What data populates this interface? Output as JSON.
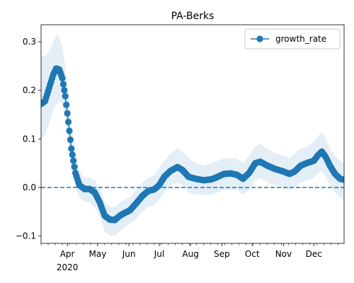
{
  "chart_data": {
    "type": "line",
    "title": "PA-Berks",
    "xlabel": "",
    "ylabel": "",
    "x_range": [
      "2020-03-06",
      "2020-12-31"
    ],
    "ylim": [
      -0.115,
      0.335
    ],
    "yticks": [
      -0.1,
      0.0,
      0.1,
      0.2,
      0.3
    ],
    "ytick_labels": [
      "−0.1",
      "0.0",
      "0.1",
      "0.2",
      "0.3"
    ],
    "xticks": [
      {
        "date": "2020-04-01",
        "label": "Apr"
      },
      {
        "date": "2020-05-01",
        "label": "May"
      },
      {
        "date": "2020-06-01",
        "label": "Jun"
      },
      {
        "date": "2020-07-01",
        "label": "Jul"
      },
      {
        "date": "2020-08-01",
        "label": "Aug"
      },
      {
        "date": "2020-09-01",
        "label": "Sep"
      },
      {
        "date": "2020-10-01",
        "label": "Oct"
      },
      {
        "date": "2020-11-01",
        "label": "Nov"
      },
      {
        "date": "2020-12-01",
        "label": "Dec"
      }
    ],
    "year_label": "2020",
    "reference_line": {
      "y": 0.0,
      "style": "dashed",
      "color": "#1f77b4"
    },
    "legend": {
      "position": "top-right"
    },
    "grid": false,
    "series": [
      {
        "name": "growth_rate",
        "color": "#1f77b4",
        "marker": "circle",
        "band_color": "#1f77b4",
        "points": [
          {
            "x": "2020-03-06",
            "y": 0.172,
            "lo": 0.1,
            "hi": 0.27
          },
          {
            "x": "2020-03-10",
            "y": 0.178,
            "lo": 0.11,
            "hi": 0.27
          },
          {
            "x": "2020-03-14",
            "y": 0.205,
            "lo": 0.13,
            "hi": 0.28
          },
          {
            "x": "2020-03-18",
            "y": 0.232,
            "lo": 0.16,
            "hi": 0.3
          },
          {
            "x": "2020-03-21",
            "y": 0.245,
            "lo": 0.17,
            "hi": 0.315
          },
          {
            "x": "2020-03-24",
            "y": 0.243,
            "lo": 0.18,
            "hi": 0.31
          },
          {
            "x": "2020-03-27",
            "y": 0.225,
            "lo": 0.17,
            "hi": 0.29
          },
          {
            "x": "2020-03-30",
            "y": 0.188,
            "lo": 0.14,
            "hi": 0.25
          },
          {
            "x": "2020-04-02",
            "y": 0.135,
            "lo": 0.09,
            "hi": 0.19
          },
          {
            "x": "2020-04-05",
            "y": 0.08,
            "lo": 0.04,
            "hi": 0.13
          },
          {
            "x": "2020-04-09",
            "y": 0.03,
            "lo": 0.0,
            "hi": 0.07
          },
          {
            "x": "2020-04-13",
            "y": 0.005,
            "lo": -0.02,
            "hi": 0.035
          },
          {
            "x": "2020-04-18",
            "y": -0.003,
            "lo": -0.03,
            "hi": 0.02
          },
          {
            "x": "2020-04-23",
            "y": -0.003,
            "lo": -0.03,
            "hi": 0.02
          },
          {
            "x": "2020-04-28",
            "y": -0.01,
            "lo": -0.04,
            "hi": 0.015
          },
          {
            "x": "2020-05-03",
            "y": -0.03,
            "lo": -0.06,
            "hi": 0.0
          },
          {
            "x": "2020-05-08",
            "y": -0.058,
            "lo": -0.09,
            "hi": -0.03
          },
          {
            "x": "2020-05-13",
            "y": -0.066,
            "lo": -0.1,
            "hi": -0.04
          },
          {
            "x": "2020-05-18",
            "y": -0.067,
            "lo": -0.1,
            "hi": -0.04
          },
          {
            "x": "2020-05-23",
            "y": -0.058,
            "lo": -0.09,
            "hi": -0.03
          },
          {
            "x": "2020-05-28",
            "y": -0.052,
            "lo": -0.08,
            "hi": -0.025
          },
          {
            "x": "2020-06-02",
            "y": -0.047,
            "lo": -0.075,
            "hi": -0.02
          },
          {
            "x": "2020-06-08",
            "y": -0.033,
            "lo": -0.065,
            "hi": -0.005
          },
          {
            "x": "2020-06-14",
            "y": -0.018,
            "lo": -0.05,
            "hi": 0.01
          },
          {
            "x": "2020-06-20",
            "y": -0.007,
            "lo": -0.04,
            "hi": 0.02
          },
          {
            "x": "2020-06-26",
            "y": -0.004,
            "lo": -0.035,
            "hi": 0.025
          },
          {
            "x": "2020-07-01",
            "y": 0.005,
            "lo": -0.025,
            "hi": 0.04
          },
          {
            "x": "2020-07-06",
            "y": 0.022,
            "lo": -0.01,
            "hi": 0.055
          },
          {
            "x": "2020-07-12",
            "y": 0.034,
            "lo": 0.005,
            "hi": 0.07
          },
          {
            "x": "2020-07-19",
            "y": 0.042,
            "lo": 0.01,
            "hi": 0.08
          },
          {
            "x": "2020-07-24",
            "y": 0.036,
            "lo": 0.005,
            "hi": 0.075
          },
          {
            "x": "2020-07-30",
            "y": 0.022,
            "lo": -0.01,
            "hi": 0.06
          },
          {
            "x": "2020-08-06",
            "y": 0.018,
            "lo": -0.015,
            "hi": 0.05
          },
          {
            "x": "2020-08-14",
            "y": 0.015,
            "lo": -0.015,
            "hi": 0.045
          },
          {
            "x": "2020-08-22",
            "y": 0.017,
            "lo": -0.015,
            "hi": 0.05
          },
          {
            "x": "2020-08-28",
            "y": 0.022,
            "lo": -0.01,
            "hi": 0.055
          },
          {
            "x": "2020-09-03",
            "y": 0.028,
            "lo": -0.005,
            "hi": 0.06
          },
          {
            "x": "2020-09-10",
            "y": 0.029,
            "lo": -0.005,
            "hi": 0.06
          },
          {
            "x": "2020-09-16",
            "y": 0.026,
            "lo": -0.005,
            "hi": 0.06
          },
          {
            "x": "2020-09-22",
            "y": 0.018,
            "lo": -0.015,
            "hi": 0.05
          },
          {
            "x": "2020-09-28",
            "y": 0.03,
            "lo": -0.005,
            "hi": 0.065
          },
          {
            "x": "2020-10-04",
            "y": 0.05,
            "lo": 0.015,
            "hi": 0.085
          },
          {
            "x": "2020-10-09",
            "y": 0.053,
            "lo": 0.02,
            "hi": 0.09
          },
          {
            "x": "2020-10-16",
            "y": 0.045,
            "lo": 0.01,
            "hi": 0.08
          },
          {
            "x": "2020-10-24",
            "y": 0.038,
            "lo": 0.005,
            "hi": 0.07
          },
          {
            "x": "2020-11-01",
            "y": 0.033,
            "lo": 0.0,
            "hi": 0.065
          },
          {
            "x": "2020-11-07",
            "y": 0.028,
            "lo": -0.005,
            "hi": 0.06
          },
          {
            "x": "2020-11-12",
            "y": 0.033,
            "lo": 0.0,
            "hi": 0.07
          },
          {
            "x": "2020-11-18",
            "y": 0.045,
            "lo": 0.01,
            "hi": 0.08
          },
          {
            "x": "2020-11-25",
            "y": 0.051,
            "lo": 0.015,
            "hi": 0.085
          },
          {
            "x": "2020-12-01",
            "y": 0.055,
            "lo": 0.02,
            "hi": 0.095
          },
          {
            "x": "2020-12-05",
            "y": 0.066,
            "lo": 0.03,
            "hi": 0.105
          },
          {
            "x": "2020-12-09",
            "y": 0.074,
            "lo": 0.035,
            "hi": 0.115
          },
          {
            "x": "2020-12-13",
            "y": 0.062,
            "lo": 0.02,
            "hi": 0.1
          },
          {
            "x": "2020-12-17",
            "y": 0.045,
            "lo": 0.005,
            "hi": 0.08
          },
          {
            "x": "2020-12-22",
            "y": 0.028,
            "lo": -0.01,
            "hi": 0.065
          },
          {
            "x": "2020-12-27",
            "y": 0.018,
            "lo": -0.02,
            "hi": 0.055
          },
          {
            "x": "2020-12-31",
            "y": 0.016,
            "lo": -0.025,
            "hi": 0.05
          }
        ]
      }
    ]
  }
}
